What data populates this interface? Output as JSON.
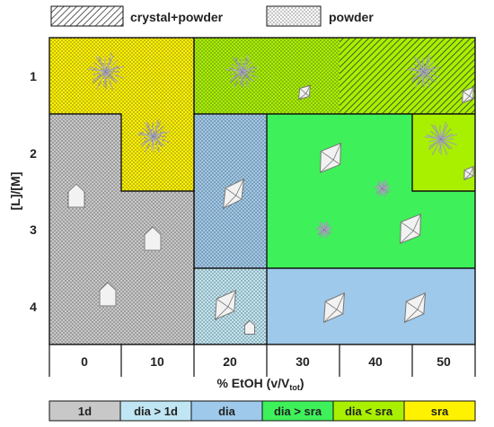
{
  "legend_top": [
    {
      "label": "crystal+powder",
      "pattern": "hatch-icon"
    },
    {
      "label": "powder",
      "pattern": "dots-icon"
    }
  ],
  "y_axis": {
    "label": "[L]/[M]",
    "ticks": [
      "1",
      "2",
      "3",
      "4"
    ]
  },
  "x_axis": {
    "label_main": "% EtOH (v/V",
    "label_sub": "tot",
    "label_close": ")",
    "ticks": [
      "0",
      "10",
      "20",
      "30",
      "40",
      "50"
    ]
  },
  "phases": [
    {
      "label": "1d",
      "color": "#c8c8c8"
    },
    {
      "label": "dia > 1d",
      "color": "#bfe6f2"
    },
    {
      "label": "dia",
      "color": "#9ec9ea"
    },
    {
      "label": "dia > sra",
      "color": "#3ef05a"
    },
    {
      "label": "dia < sra",
      "color": "#a8f000"
    },
    {
      "label": "sra",
      "color": "#fff200"
    }
  ],
  "colors": {
    "border": "#111111",
    "crystal_fill": "#f2f2f2",
    "crystal_stroke": "#777777",
    "star": "#6c6c8c"
  },
  "icons": {
    "star": "needle-cluster-icon",
    "octahedron": "octahedron-crystal-icon",
    "house": "pentagon-crystal-icon"
  }
}
